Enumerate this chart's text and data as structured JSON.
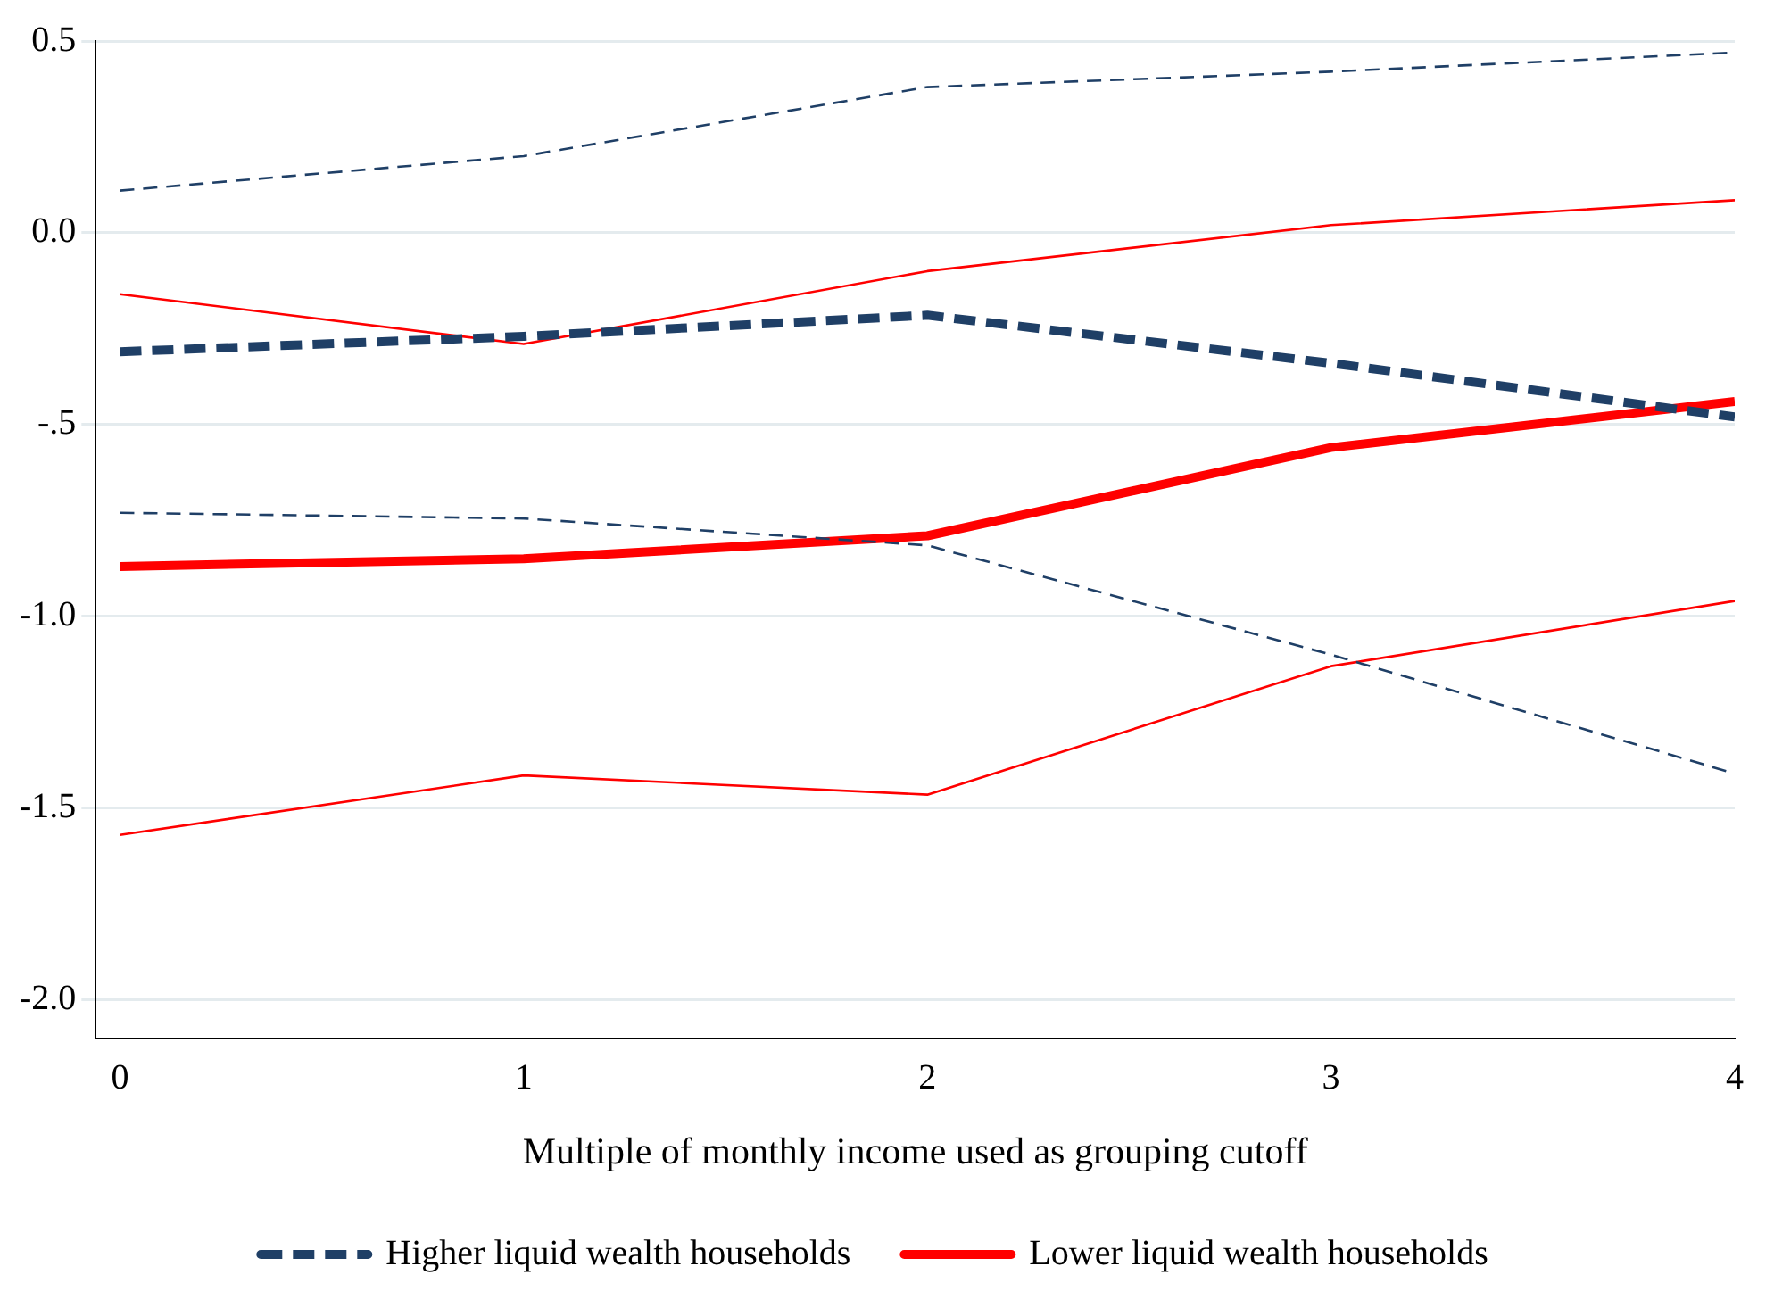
{
  "chart_data": {
    "type": "line",
    "xlabel": "Multiple of monthly income used as grouping cutoff",
    "x": [
      0,
      1,
      2,
      3,
      4
    ],
    "xlim": [
      -0.06,
      4
    ],
    "xticks": [
      0,
      1,
      2,
      3,
      4
    ],
    "ylim": [
      -2.1,
      0.5
    ],
    "yticks": [
      {
        "value": -2,
        "label": "-2.0"
      },
      {
        "value": -1.5,
        "label": "-1.5"
      },
      {
        "value": -1,
        "label": "-1.0"
      },
      {
        "value": -0.5,
        "label": "-.5"
      },
      {
        "value": 0,
        "label": "0.0"
      },
      {
        "value": 0.5,
        "label": "0.5"
      }
    ],
    "grid": "y",
    "legend": "bottom",
    "marker": "none",
    "series": [
      {
        "name": "Higher liquid wealth households",
        "color": "#1f3f66",
        "line_style": "dashed",
        "values": [
          -0.31,
          -0.27,
          -0.215,
          -0.34,
          -0.48
        ]
      },
      {
        "color": "#1f3f66",
        "line_style": "dashed",
        "values": [
          -0.73,
          -0.745,
          -0.815,
          -1.1,
          -1.41
        ]
      },
      {
        "color": "#1f3f66",
        "line_style": "dashed",
        "values": [
          0.11,
          0.2,
          0.38,
          0.42,
          0.47
        ]
      },
      {
        "name": "Lower liquid wealth households",
        "color": "#ff0000",
        "line_style": "solid",
        "values": [
          -0.87,
          -0.85,
          -0.79,
          -0.56,
          -0.44
        ]
      },
      {
        "color": "#ff0000",
        "line_style": "solid",
        "values": [
          -1.57,
          -1.415,
          -1.465,
          -1.13,
          -0.96
        ]
      },
      {
        "color": "#ff0000",
        "line_style": "solid",
        "values": [
          -0.16,
          -0.29,
          -0.1,
          0.02,
          0.085
        ]
      }
    ]
  }
}
